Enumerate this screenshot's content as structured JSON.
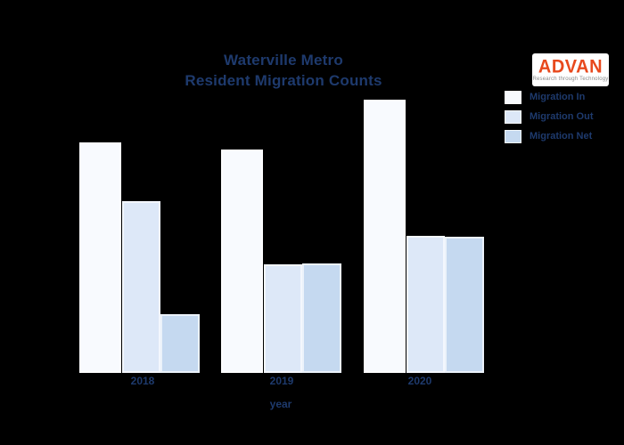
{
  "title": {
    "line1": "Waterville Metro",
    "line2": "Resident Migration Counts"
  },
  "logo": {
    "name": "ADVAN",
    "tagline": "Research through Technology",
    "brand_color": "#e8491d"
  },
  "legend": {
    "items": [
      {
        "label": "Migration In",
        "color": "#f8fafe"
      },
      {
        "label": "Migration Out",
        "color": "#dde8f8"
      },
      {
        "label": "Migration Net",
        "color": "#c5d9f0"
      }
    ]
  },
  "x_axis": {
    "label": "year"
  },
  "colors": {
    "background": "#000000",
    "title_text": "#1e3a6d",
    "tick_text": "#1e3a6d"
  },
  "chart_data": {
    "type": "bar",
    "title": "Waterville Metro Resident Migration Counts",
    "categories": [
      "2018",
      "2019",
      "2020"
    ],
    "series": [
      {
        "name": "Migration In",
        "values": [
          259,
          251,
          307
        ],
        "color": "#f8fafe"
      },
      {
        "name": "Migration Out",
        "values": [
          193,
          122,
          154
        ],
        "color": "#dde8f8"
      },
      {
        "name": "Migration Net",
        "values": [
          66,
          123,
          153
        ],
        "color": "#c5d9f0"
      }
    ],
    "xlabel": "year",
    "ylabel": "",
    "units": "relative bar height (no y-axis ticks shown in figure)",
    "ylim": [
      0,
      330
    ],
    "grid": false,
    "y_axis_hidden": true,
    "legend_position": "upper right"
  }
}
